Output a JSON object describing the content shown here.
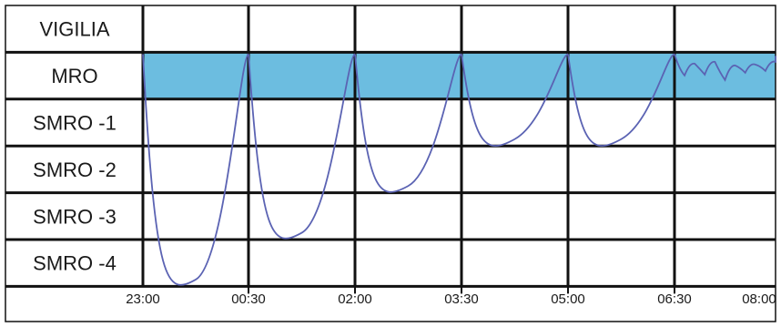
{
  "chart_data": {
    "type": "line",
    "stages": [
      "VIGILIA",
      "MRO",
      "SMRO -1",
      "SMRO -2",
      "SMRO -3",
      "SMRO -4"
    ],
    "highlight_stage": "MRO",
    "highlight_color": "#6cbde0",
    "x_ticks": [
      "23:00",
      "00:30",
      "02:00",
      "03:30",
      "05:00",
      "06:30",
      "08:00"
    ],
    "x_range": [
      "23:00",
      "08:00"
    ],
    "line_color": "#5b63b3",
    "grid": true,
    "cycles": [
      {
        "start": "23:00",
        "end": "00:30",
        "deepest_stage": "SMRO -4"
      },
      {
        "start": "00:30",
        "end": "02:00",
        "deepest_stage": "SMRO -3"
      },
      {
        "start": "02:00",
        "end": "03:30",
        "deepest_stage": "SMRO -2"
      },
      {
        "start": "03:30",
        "end": "05:00",
        "deepest_stage": "SMRO -1"
      },
      {
        "start": "05:00",
        "end": "06:30",
        "deepest_stage": "SMRO -1"
      }
    ],
    "final_period": {
      "start": "06:30",
      "end": "08:00",
      "stage": "MRO"
    }
  }
}
